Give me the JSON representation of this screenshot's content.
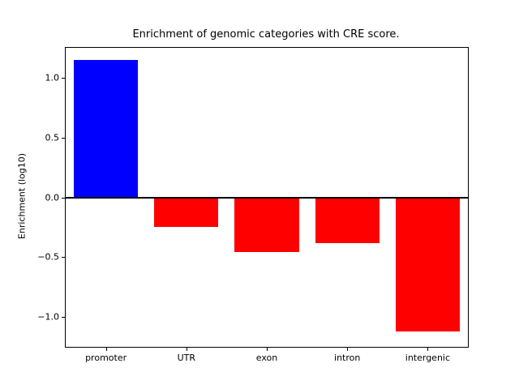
{
  "figure": {
    "title": "Enrichment of genomic categories with CRE score.",
    "ylabel": "Enrichment (log10)"
  },
  "chart_data": {
    "type": "bar",
    "title": "Enrichment of genomic categories with CRE score.",
    "xlabel": "",
    "ylabel": "Enrichment (log10)",
    "categories": [
      "promoter",
      "UTR",
      "exon",
      "intron",
      "intergenic"
    ],
    "values": [
      1.15,
      -0.25,
      -0.46,
      -0.38,
      -1.12
    ],
    "bar_colors": [
      "#0000ff",
      "#ff0000",
      "#ff0000",
      "#ff0000",
      "#ff0000"
    ],
    "ylim": [
      -1.25,
      1.25
    ],
    "yticks": [
      -1.0,
      -0.5,
      0.0,
      0.5,
      1.0
    ],
    "ytick_labels": [
      "−1.0",
      "−0.5",
      "0.0",
      "0.5",
      "1.0"
    ],
    "bar_width_fraction": 0.8,
    "zero_line": true,
    "grid": false,
    "legend": null
  }
}
